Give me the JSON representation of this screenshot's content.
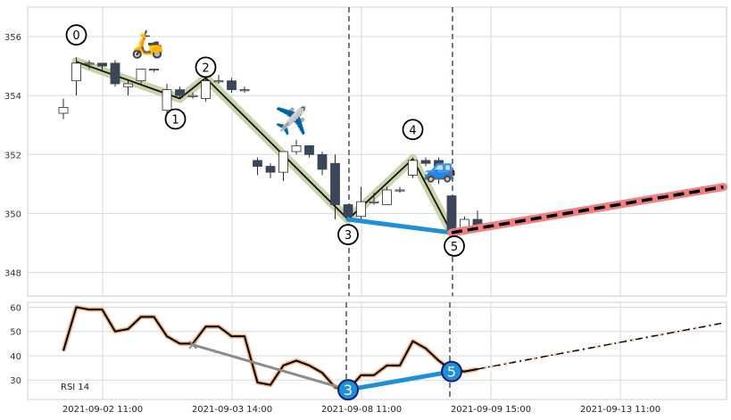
{
  "chart_data": {
    "type": "candlestick",
    "price_panel": {
      "ylim": [
        347.2,
        357.0
      ],
      "y_ticks": [
        348,
        350,
        352,
        354,
        356
      ],
      "grid": true,
      "candles": [
        {
          "o": 353.4,
          "h": 353.9,
          "l": 353.2,
          "c": 353.6
        },
        {
          "o": 354.5,
          "h": 355.3,
          "l": 354.0,
          "c": 355.1
        },
        {
          "o": 355.1,
          "h": 355.2,
          "l": 354.9,
          "c": 355.1
        },
        {
          "o": 355.1,
          "h": 355.1,
          "l": 354.8,
          "c": 355.0
        },
        {
          "o": 355.1,
          "h": 355.2,
          "l": 354.3,
          "c": 354.4
        },
        {
          "o": 354.3,
          "h": 354.5,
          "l": 354.0,
          "c": 354.4
        },
        {
          "o": 354.5,
          "h": 354.9,
          "l": 354.4,
          "c": 354.9
        },
        {
          "o": 354.9,
          "h": 354.9,
          "l": 354.8,
          "c": 354.9
        },
        {
          "o": 353.5,
          "h": 354.4,
          "l": 353.4,
          "c": 354.2
        },
        {
          "o": 354.2,
          "h": 354.3,
          "l": 353.9,
          "c": 354.0
        },
        {
          "o": 354.0,
          "h": 354.1,
          "l": 353.9,
          "c": 354.0
        },
        {
          "o": 353.9,
          "h": 354.6,
          "l": 353.8,
          "c": 354.5
        },
        {
          "o": 354.5,
          "h": 354.7,
          "l": 354.4,
          "c": 354.5
        },
        {
          "o": 354.5,
          "h": 354.6,
          "l": 354.1,
          "c": 354.2
        },
        {
          "o": 354.2,
          "h": 354.3,
          "l": 354.1,
          "c": 354.2
        },
        {
          "o": 351.8,
          "h": 351.9,
          "l": 351.3,
          "c": 351.6
        },
        {
          "o": 351.6,
          "h": 351.7,
          "l": 351.2,
          "c": 351.4
        },
        {
          "o": 351.4,
          "h": 352.1,
          "l": 351.1,
          "c": 352.1
        },
        {
          "o": 352.1,
          "h": 352.5,
          "l": 352.0,
          "c": 352.3
        },
        {
          "o": 352.3,
          "h": 352.3,
          "l": 351.9,
          "c": 352.0
        },
        {
          "o": 352.0,
          "h": 352.1,
          "l": 351.3,
          "c": 351.5
        },
        {
          "o": 351.7,
          "h": 352.0,
          "l": 349.8,
          "c": 350.3
        },
        {
          "o": 350.3,
          "h": 350.3,
          "l": 349.8,
          "c": 349.9
        },
        {
          "o": 349.9,
          "h": 350.9,
          "l": 349.8,
          "c": 350.4
        },
        {
          "o": 350.4,
          "h": 350.7,
          "l": 350.3,
          "c": 350.4
        },
        {
          "o": 350.3,
          "h": 350.9,
          "l": 350.3,
          "c": 350.8
        },
        {
          "o": 350.8,
          "h": 350.9,
          "l": 350.7,
          "c": 350.8
        },
        {
          "o": 351.3,
          "h": 351.9,
          "l": 351.2,
          "c": 351.8
        },
        {
          "o": 351.8,
          "h": 351.9,
          "l": 351.6,
          "c": 351.7
        },
        {
          "o": 351.8,
          "h": 351.9,
          "l": 351.0,
          "c": 351.2
        },
        {
          "o": 350.6,
          "h": 350.6,
          "l": 349.3,
          "c": 349.4
        },
        {
          "o": 349.5,
          "h": 349.9,
          "l": 349.4,
          "c": 349.8
        },
        {
          "o": 349.8,
          "h": 350.1,
          "l": 349.4,
          "c": 349.6
        }
      ],
      "zigzag_points": [
        {
          "i": 1,
          "v": 355.15,
          "label": "0"
        },
        {
          "i": 9,
          "v": 353.9,
          "label": "1"
        },
        {
          "i": 11,
          "v": 354.6,
          "label": "2"
        },
        {
          "i": 22,
          "v": 349.8,
          "label": "3"
        },
        {
          "i": 27,
          "v": 351.85,
          "label": "4"
        },
        {
          "i": 30,
          "v": 349.35,
          "label": "5"
        }
      ],
      "divergence_line": {
        "from": {
          "i": 22,
          "v": 349.8
        },
        "to": {
          "i": 30,
          "v": 349.35
        }
      },
      "projection": {
        "from": {
          "i": 30,
          "v": 349.35
        },
        "to": {
          "i": 51,
          "v": 350.9
        }
      },
      "vlines_at": [
        22,
        30
      ],
      "emojis": [
        {
          "glyph": "🛵",
          "i": 6.5,
          "v": 355.8
        },
        {
          "glyph": "✈️",
          "i": 17.6,
          "v": 353.2
        },
        {
          "glyph": "🚙",
          "i": 29.1,
          "v": 351.6
        }
      ]
    },
    "rsi_panel": {
      "label": "RSI 14",
      "ylim": [
        22,
        62
      ],
      "y_ticks": [
        30,
        40,
        50,
        60
      ],
      "values": [
        42,
        60,
        59,
        59,
        50,
        51,
        56,
        56,
        48,
        45,
        45,
        52,
        52,
        48,
        48,
        29,
        28,
        36,
        38,
        36,
        33,
        27,
        26,
        32,
        32,
        36,
        36,
        46,
        43,
        38,
        34,
        33.5,
        34.5
      ],
      "projection": [
        34.5,
        35.5,
        36.5,
        37.5,
        38.5,
        39.5,
        40.5,
        41.5,
        42.5,
        43.5,
        44.5,
        45.5,
        46.5,
        47.5,
        48.5,
        49.5,
        50.5,
        51.5,
        52.5,
        53.5
      ],
      "divergence_gray": {
        "from": {
          "i": 10,
          "v": 44.5
        },
        "to": {
          "i": 22,
          "v": 26
        }
      },
      "divergence_blue": {
        "from": {
          "i": 22,
          "v": 26
        },
        "to": {
          "i": 30,
          "v": 33.5
        }
      },
      "markers": [
        {
          "i": 22,
          "v": 26,
          "label": "3"
        },
        {
          "i": 30,
          "v": 33.5,
          "label": "5"
        }
      ]
    },
    "x_ticks": [
      {
        "i": 0,
        "label": "2021-09-02 11:00"
      },
      {
        "i": 10,
        "label": "2021-09-03 14:00"
      },
      {
        "i": 20,
        "label": "2021-09-08 11:00"
      },
      {
        "i": 30,
        "label": "2021-09-09 15:00"
      },
      {
        "i": 40,
        "label": "2021-09-13 11:00"
      }
    ],
    "colors": {
      "bear": "#3b4658",
      "bull_fill": "#ffffff",
      "candle_edge": "#2b2b2b",
      "zigzag_halo": "#c9d4a8",
      "zigzag_line": "#111111",
      "divergence": "#1e90d6",
      "projection_halo": "#f08080",
      "vline": "#4a5e78",
      "rsi_halo": "#f2b483",
      "gray_line": "#8c8c8c",
      "grid": "#d8d8d8"
    }
  }
}
